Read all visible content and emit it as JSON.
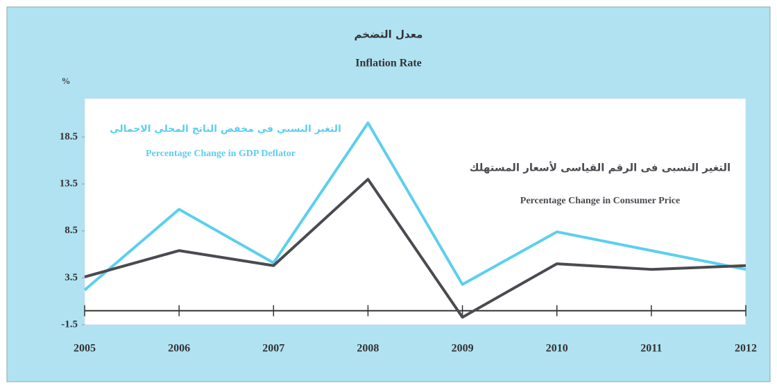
{
  "chart_data": {
    "type": "line",
    "title_ar": "معدل التضخم",
    "title": "Inflation Rate",
    "y_label": "%",
    "categories": [
      "2005",
      "2006",
      "2007",
      "2008",
      "2009",
      "2010",
      "2011",
      "2012"
    ],
    "series": [
      {
        "name_ar": "التغير النسبي في مخفض الناتج المحلي الاجمالي",
        "name": "Percentage Change in GDP Deflator",
        "color": "#5ccfee",
        "values": [
          2.2,
          10.8,
          5.1,
          20.0,
          2.8,
          8.4,
          6.4,
          4.4
        ]
      },
      {
        "name_ar": "التغير النسبى فى الرقم القياسى لأسعار المستهلك",
        "name": "Percentage Change in Consumer Price",
        "color": "#4a4b50",
        "values": [
          3.6,
          6.4,
          4.8,
          14.0,
          -0.7,
          5.0,
          4.4,
          4.8
        ]
      }
    ],
    "ylim": [
      -1.5,
      22.6
    ],
    "yticks": [
      -1.5,
      3.5,
      8.5,
      13.5,
      18.5
    ],
    "background": "#b0e2f2"
  }
}
